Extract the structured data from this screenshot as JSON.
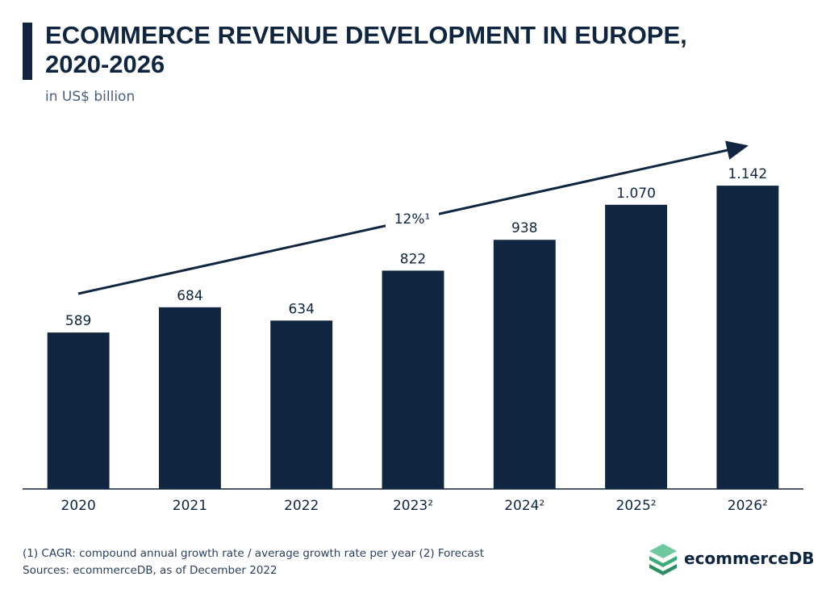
{
  "chart_data": {
    "type": "bar",
    "title": "ECOMMERCE REVENUE DEVELOPMENT IN EUROPE, 2020-2026",
    "subtitle": "in US$ billion",
    "categories": [
      "2020",
      "2021",
      "2022",
      "2023²",
      "2024²",
      "2025²",
      "2026²"
    ],
    "values": [
      589,
      684,
      634,
      822,
      938,
      1070,
      1142
    ],
    "value_labels": [
      "589",
      "684",
      "634",
      "822",
      "938",
      "1.070",
      "1.142"
    ],
    "color": "#0f2540",
    "ylim": [
      0,
      1200
    ],
    "annotation": "12%¹",
    "footnote": "(1) CAGR: compound annual growth rate / average growth rate per year (2) Forecast",
    "source": "Sources: ecommerceDB, as of December 2022",
    "brand": "ecommerceDB"
  }
}
